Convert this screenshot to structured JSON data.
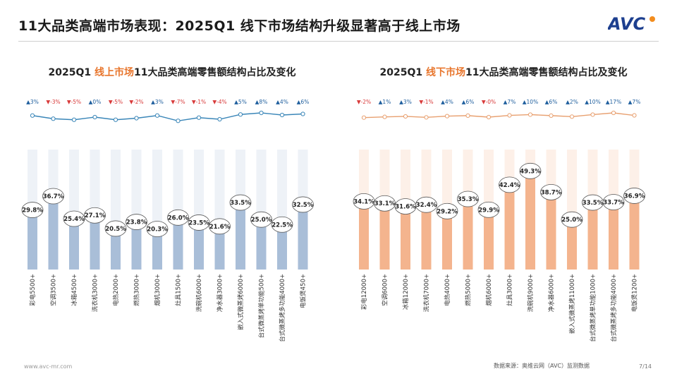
{
  "page": {
    "title": "11大品类高端市场表现：2025Q1 线下市场结构升级显著高于线上市场",
    "logo": "AVC",
    "footer_url": "www.avc-mr.com",
    "source": "数据来源：奥维云网（AVC）监测数据",
    "page_number": "7/14"
  },
  "chart_data": [
    {
      "type": "bar",
      "title_prefix": "2025Q1 ",
      "title_highlight": "线上市场",
      "title_suffix": "11大品类高端零售额结构占比及变化",
      "categories": [
        "彩电5500+",
        "空调3500+",
        "冰箱4500+",
        "洗衣机3000+",
        "电热2000+",
        "燃热3000+",
        "烟机3000+",
        "灶具1500+",
        "洗碗机6000+",
        "净水器3000+",
        "嵌入式微蒸烤6000+",
        "台式微蒸烤单功能500+",
        "台式微蒸烤多功能4000+",
        "电饭煲450+"
      ],
      "values": [
        29.8,
        36.7,
        25.4,
        27.1,
        20.5,
        23.8,
        20.3,
        26.0,
        23.5,
        21.6,
        33.5,
        25.0,
        22.5,
        32.5
      ],
      "value_labels": [
        "29.8%",
        "36.7%",
        "25.4%",
        "27.1%",
        "20.5%",
        "23.8%",
        "20.3%",
        "26.0%",
        "23.5%",
        "21.6%",
        "33.5%",
        "25.0%",
        "22.5%",
        "32.5%"
      ],
      "changes": [
        3,
        -3,
        -5,
        0,
        -5,
        -2,
        3,
        -7,
        -1,
        -4,
        5,
        8,
        4,
        6
      ],
      "change_labels": [
        "▲3%",
        "▼-3%",
        "▼-5%",
        "▲0%",
        "▼-5%",
        "▼-2%",
        "▲3%",
        "▼-7%",
        "▼-1%",
        "▼-4%",
        "▲5%",
        "▲8%",
        "▲4%",
        "▲6%"
      ],
      "bar_color": "#a9bed8",
      "line_color": "#3a86b8",
      "up_color": "#1f5f9e",
      "down_color": "#d83a3a",
      "ylim": [
        0,
        60
      ]
    },
    {
      "type": "bar",
      "title_prefix": "2025Q1 ",
      "title_highlight": "线下市场",
      "title_suffix": "11大品类高端零售额结构占比及变化",
      "categories": [
        "彩电12000+",
        "空调6000+",
        "冰箱12000+",
        "洗衣机7000+",
        "电热4000+",
        "燃热5000+",
        "烟机6000+",
        "灶具3000+",
        "洗碗机9000+",
        "净水器6000+",
        "嵌入式微蒸烤11000+",
        "台式微蒸烤单功能1000+",
        "台式微蒸烤多功能4000+",
        "电饭煲1200+"
      ],
      "values": [
        34.1,
        33.1,
        31.6,
        32.4,
        29.2,
        35.3,
        29.9,
        42.4,
        49.3,
        38.7,
        25.0,
        33.5,
        33.7,
        36.9
      ],
      "value_labels": [
        "34.1%",
        "33.1%",
        "31.6%",
        "32.4%",
        "29.2%",
        "35.3%",
        "29.9%",
        "42.4%",
        "49.3%",
        "38.7%",
        "25.0%",
        "33.5%",
        "33.7%",
        "36.9%"
      ],
      "changes": [
        -2,
        1,
        3,
        -1,
        4,
        6,
        0,
        7,
        10,
        6,
        2,
        10,
        17,
        7
      ],
      "change_labels": [
        "▼-2%",
        "▲1%",
        "▲3%",
        "▼-1%",
        "▲4%",
        "▲6%",
        "▼-0%",
        "▲7%",
        "▲10%",
        "▲6%",
        "▲2%",
        "▲10%",
        "▲17%",
        "▲7%"
      ],
      "bar_color": "#f4b48e",
      "line_color": "#e8a070",
      "up_color": "#1f5f9e",
      "down_color": "#d83a3a",
      "ylim": [
        0,
        60
      ]
    }
  ]
}
